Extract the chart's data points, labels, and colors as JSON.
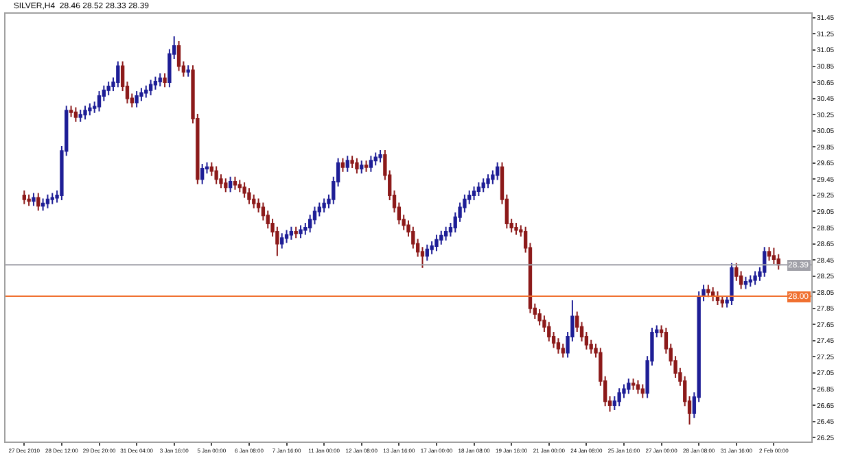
{
  "chart_data": {
    "type": "candlestick",
    "title": "SILVER,H4  28.46 28.52 28.33 28.39",
    "categories": [
      "27 Dec 2010",
      null,
      null,
      null,
      null,
      null,
      null,
      null,
      "28 Dec 12:00",
      null,
      null,
      null,
      null,
      null,
      null,
      null,
      "29 Dec 20:00",
      null,
      null,
      null,
      null,
      null,
      null,
      null,
      "31 Dec 04:00",
      null,
      null,
      null,
      null,
      null,
      null,
      null,
      "3 Jan 16:00",
      null,
      null,
      null,
      null,
      null,
      null,
      null,
      "5 Jan 00:00",
      null,
      null,
      null,
      null,
      null,
      null,
      null,
      "6 Jan 08:00",
      null,
      null,
      null,
      null,
      null,
      null,
      null,
      "7 Jan 16:00",
      null,
      null,
      null,
      null,
      null,
      null,
      null,
      "11 Jan 00:00",
      null,
      null,
      null,
      null,
      null,
      null,
      null,
      "12 Jan 08:00",
      null,
      null,
      null,
      null,
      null,
      null,
      null,
      "13 Jan 16:00",
      null,
      null,
      null,
      null,
      null,
      null,
      null,
      "17 Jan 00:00",
      null,
      null,
      null,
      null,
      null,
      null,
      null,
      "18 Jan 08:00",
      null,
      null,
      null,
      null,
      null,
      null,
      null,
      "19 Jan 16:00",
      null,
      null,
      null,
      null,
      null,
      null,
      null,
      "21 Jan 00:00",
      null,
      null,
      null,
      null,
      null,
      null,
      null,
      "24 Jan 08:00",
      null,
      null,
      null,
      null,
      null,
      null,
      null,
      "25 Jan 16:00",
      null,
      null,
      null,
      null,
      null,
      null,
      null,
      "27 Jan 00:00",
      null,
      null,
      null,
      null,
      null,
      null,
      null,
      "28 Jan 08:00",
      null,
      null,
      null,
      null,
      null,
      null,
      null,
      "31 Jan 16:00",
      null,
      null,
      null,
      null,
      null,
      null,
      null,
      "2 Feb 00:00",
      null
    ],
    "ohlc": [
      [
        29.25,
        29.31,
        29.14,
        29.2
      ],
      [
        29.2,
        29.26,
        29.12,
        29.18
      ],
      [
        29.18,
        29.28,
        29.12,
        29.22
      ],
      [
        29.22,
        29.28,
        29.06,
        29.12
      ],
      [
        29.12,
        29.21,
        29.06,
        29.15
      ],
      [
        29.15,
        29.26,
        29.09,
        29.2
      ],
      [
        29.2,
        29.28,
        29.14,
        29.22
      ],
      [
        29.22,
        29.31,
        29.16,
        29.25
      ],
      [
        29.25,
        29.86,
        29.19,
        29.8
      ],
      [
        29.8,
        30.36,
        29.74,
        30.3
      ],
      [
        30.3,
        30.36,
        30.22,
        30.28
      ],
      [
        30.28,
        30.34,
        30.16,
        30.22
      ],
      [
        30.22,
        30.31,
        30.16,
        30.25
      ],
      [
        30.25,
        30.36,
        30.19,
        30.3
      ],
      [
        30.3,
        30.39,
        30.24,
        30.33
      ],
      [
        30.33,
        30.41,
        30.27,
        30.35
      ],
      [
        30.35,
        30.54,
        30.29,
        30.48
      ],
      [
        30.48,
        30.61,
        30.42,
        30.55
      ],
      [
        30.55,
        30.66,
        30.49,
        30.6
      ],
      [
        30.6,
        30.71,
        30.54,
        30.65
      ],
      [
        30.65,
        30.91,
        30.59,
        30.85
      ],
      [
        30.85,
        30.91,
        30.54,
        30.6
      ],
      [
        30.6,
        30.66,
        30.39,
        30.45
      ],
      [
        30.45,
        30.51,
        30.34,
        30.4
      ],
      [
        30.4,
        30.54,
        30.34,
        30.48
      ],
      [
        30.48,
        30.58,
        30.42,
        30.52
      ],
      [
        30.52,
        30.61,
        30.46,
        30.55
      ],
      [
        30.55,
        30.68,
        30.49,
        30.62
      ],
      [
        30.62,
        30.72,
        30.56,
        30.66
      ],
      [
        30.66,
        30.76,
        30.6,
        30.7
      ],
      [
        30.7,
        30.76,
        30.59,
        30.65
      ],
      [
        30.65,
        31.06,
        30.59,
        31.0
      ],
      [
        31.0,
        31.22,
        30.94,
        31.1
      ],
      [
        31.1,
        31.16,
        30.79,
        30.85
      ],
      [
        30.85,
        30.91,
        30.72,
        30.78
      ],
      [
        30.78,
        30.86,
        30.72,
        30.8
      ],
      [
        30.8,
        30.86,
        30.14,
        30.2
      ],
      [
        30.2,
        30.26,
        29.39,
        29.45
      ],
      [
        29.45,
        29.64,
        29.39,
        29.58
      ],
      [
        29.58,
        29.66,
        29.52,
        29.6
      ],
      [
        29.6,
        29.66,
        29.49,
        29.55
      ],
      [
        29.55,
        29.61,
        29.39,
        29.45
      ],
      [
        29.45,
        29.51,
        29.34,
        29.4
      ],
      [
        29.4,
        29.46,
        29.29,
        29.35
      ],
      [
        29.35,
        29.48,
        29.29,
        29.42
      ],
      [
        29.42,
        29.48,
        29.32,
        29.38
      ],
      [
        29.38,
        29.44,
        29.29,
        29.35
      ],
      [
        29.35,
        29.41,
        29.22,
        29.28
      ],
      [
        29.28,
        29.34,
        29.14,
        29.2
      ],
      [
        29.2,
        29.26,
        29.09,
        29.15
      ],
      [
        29.15,
        29.21,
        29.04,
        29.1
      ],
      [
        29.1,
        29.16,
        28.94,
        29.0
      ],
      [
        29.0,
        29.06,
        28.84,
        28.9
      ],
      [
        28.9,
        28.96,
        28.74,
        28.8
      ],
      [
        28.8,
        28.86,
        28.5,
        28.65
      ],
      [
        28.65,
        28.78,
        28.59,
        28.72
      ],
      [
        28.72,
        28.82,
        28.66,
        28.76
      ],
      [
        28.76,
        28.86,
        28.7,
        28.8
      ],
      [
        28.8,
        28.86,
        28.72,
        28.78
      ],
      [
        28.78,
        28.88,
        28.72,
        28.82
      ],
      [
        28.82,
        28.91,
        28.76,
        28.85
      ],
      [
        28.85,
        29.01,
        28.79,
        28.95
      ],
      [
        28.95,
        29.11,
        28.89,
        29.05
      ],
      [
        29.05,
        29.16,
        28.99,
        29.1
      ],
      [
        29.1,
        29.21,
        29.04,
        29.15
      ],
      [
        29.15,
        29.26,
        29.09,
        29.2
      ],
      [
        29.2,
        29.48,
        29.14,
        29.42
      ],
      [
        29.42,
        29.71,
        29.36,
        29.65
      ],
      [
        29.65,
        29.71,
        29.54,
        29.6
      ],
      [
        29.6,
        29.74,
        29.54,
        29.68
      ],
      [
        29.68,
        29.74,
        29.59,
        29.65
      ],
      [
        29.65,
        29.71,
        29.52,
        29.58
      ],
      [
        29.58,
        29.68,
        29.52,
        29.62
      ],
      [
        29.62,
        29.68,
        29.54,
        29.6
      ],
      [
        29.6,
        29.74,
        29.54,
        29.68
      ],
      [
        29.68,
        29.78,
        29.62,
        29.72
      ],
      [
        29.72,
        29.81,
        29.66,
        29.75
      ],
      [
        29.75,
        29.81,
        29.44,
        29.5
      ],
      [
        29.5,
        29.56,
        29.19,
        29.25
      ],
      [
        29.25,
        29.31,
        29.04,
        29.1
      ],
      [
        29.1,
        29.16,
        28.89,
        28.95
      ],
      [
        28.95,
        29.01,
        28.82,
        28.88
      ],
      [
        28.88,
        28.94,
        28.74,
        28.8
      ],
      [
        28.8,
        28.86,
        28.59,
        28.65
      ],
      [
        28.65,
        28.71,
        28.49,
        28.55
      ],
      [
        28.55,
        28.61,
        28.35,
        28.5
      ],
      [
        28.5,
        28.64,
        28.44,
        28.58
      ],
      [
        28.58,
        28.68,
        28.52,
        28.62
      ],
      [
        28.62,
        28.76,
        28.56,
        28.7
      ],
      [
        28.7,
        28.81,
        28.64,
        28.75
      ],
      [
        28.75,
        28.86,
        28.69,
        28.8
      ],
      [
        28.8,
        28.91,
        28.74,
        28.85
      ],
      [
        28.85,
        29.04,
        28.79,
        28.98
      ],
      [
        28.98,
        29.16,
        28.92,
        29.1
      ],
      [
        29.1,
        29.26,
        29.04,
        29.2
      ],
      [
        29.2,
        29.31,
        29.14,
        29.25
      ],
      [
        29.25,
        29.36,
        29.19,
        29.3
      ],
      [
        29.3,
        29.41,
        29.24,
        29.35
      ],
      [
        29.35,
        29.46,
        29.29,
        29.4
      ],
      [
        29.4,
        29.51,
        29.34,
        29.45
      ],
      [
        29.45,
        29.56,
        29.39,
        29.5
      ],
      [
        29.5,
        29.66,
        29.44,
        29.6
      ],
      [
        29.6,
        29.66,
        29.14,
        29.2
      ],
      [
        29.2,
        29.26,
        28.84,
        28.9
      ],
      [
        28.9,
        28.96,
        28.79,
        28.85
      ],
      [
        28.85,
        28.91,
        28.76,
        28.82
      ],
      [
        28.82,
        28.88,
        28.74,
        28.8
      ],
      [
        28.8,
        28.86,
        28.54,
        28.6
      ],
      [
        28.6,
        28.66,
        27.79,
        27.85
      ],
      [
        27.85,
        27.91,
        27.72,
        27.78
      ],
      [
        27.78,
        27.84,
        27.64,
        27.7
      ],
      [
        27.7,
        27.76,
        27.56,
        27.62
      ],
      [
        27.62,
        27.68,
        27.44,
        27.5
      ],
      [
        27.5,
        27.56,
        27.36,
        27.42
      ],
      [
        27.42,
        27.48,
        27.29,
        27.35
      ],
      [
        27.35,
        27.41,
        27.24,
        27.3
      ],
      [
        27.3,
        27.56,
        27.24,
        27.5
      ],
      [
        27.5,
        27.95,
        27.44,
        27.75
      ],
      [
        27.75,
        27.81,
        27.56,
        27.62
      ],
      [
        27.62,
        27.68,
        27.44,
        27.5
      ],
      [
        27.5,
        27.56,
        27.34,
        27.4
      ],
      [
        27.4,
        27.46,
        27.29,
        27.35
      ],
      [
        27.35,
        27.41,
        27.24,
        27.3
      ],
      [
        27.3,
        27.36,
        26.89,
        26.95
      ],
      [
        26.95,
        27.01,
        26.64,
        26.7
      ],
      [
        26.7,
        26.76,
        26.57,
        26.65
      ],
      [
        26.65,
        26.76,
        26.59,
        26.7
      ],
      [
        26.7,
        26.86,
        26.64,
        26.8
      ],
      [
        26.8,
        26.91,
        26.74,
        26.85
      ],
      [
        26.85,
        26.98,
        26.79,
        26.92
      ],
      [
        26.92,
        26.98,
        26.84,
        26.9
      ],
      [
        26.9,
        26.96,
        26.79,
        26.85
      ],
      [
        26.85,
        26.91,
        26.74,
        26.8
      ],
      [
        26.8,
        27.26,
        26.74,
        27.2
      ],
      [
        27.2,
        27.61,
        27.14,
        27.55
      ],
      [
        27.55,
        27.64,
        27.49,
        27.58
      ],
      [
        27.58,
        27.64,
        27.49,
        27.55
      ],
      [
        27.55,
        27.61,
        27.29,
        27.35
      ],
      [
        27.35,
        27.41,
        27.14,
        27.2
      ],
      [
        27.2,
        27.26,
        26.99,
        27.05
      ],
      [
        27.05,
        27.11,
        26.89,
        26.95
      ],
      [
        26.95,
        27.01,
        26.64,
        26.7
      ],
      [
        26.7,
        26.76,
        26.41,
        26.55
      ],
      [
        26.55,
        26.81,
        26.49,
        26.75
      ],
      [
        26.75,
        28.06,
        26.69,
        28.0
      ],
      [
        28.0,
        28.14,
        27.94,
        28.08
      ],
      [
        28.08,
        28.14,
        27.99,
        28.05
      ],
      [
        28.05,
        28.11,
        27.94,
        28.0
      ],
      [
        28.0,
        28.06,
        27.89,
        27.95
      ],
      [
        27.95,
        28.01,
        27.86,
        27.92
      ],
      [
        27.92,
        28.01,
        27.86,
        27.95
      ],
      [
        27.95,
        28.41,
        27.89,
        28.35
      ],
      [
        28.35,
        28.41,
        28.19,
        28.25
      ],
      [
        28.25,
        28.31,
        28.09,
        28.15
      ],
      [
        28.15,
        28.24,
        28.09,
        28.18
      ],
      [
        28.18,
        28.26,
        28.12,
        28.2
      ],
      [
        28.2,
        28.31,
        28.14,
        28.25
      ],
      [
        28.25,
        28.36,
        28.19,
        28.3
      ],
      [
        28.3,
        28.61,
        28.24,
        28.55
      ],
      [
        28.55,
        28.61,
        28.44,
        28.5
      ],
      [
        28.5,
        28.6,
        28.4,
        28.46
      ],
      [
        28.46,
        28.52,
        28.33,
        28.39
      ]
    ],
    "colors": [
      "#8c1a1a",
      "#8c1a1a",
      "#1e1e96",
      "#8c1a1a",
      "#1e1e96",
      "#1e1e96",
      "#1e1e96",
      "#1e1e96",
      "#1e1e96",
      "#1e1e96",
      "#8c1a1a",
      "#8c1a1a",
      "#1e1e96",
      "#1e1e96",
      "#1e1e96",
      "#1e1e96",
      "#1e1e96",
      "#1e1e96",
      "#1e1e96",
      "#1e1e96",
      "#1e1e96",
      "#8c1a1a",
      "#8c1a1a",
      "#8c1a1a",
      "#1e1e96",
      "#1e1e96",
      "#1e1e96",
      "#1e1e96",
      "#1e1e96",
      "#1e1e96",
      "#8c1a1a",
      "#1e1e96",
      "#1e1e96",
      "#8c1a1a",
      "#8c1a1a",
      "#1e1e96",
      "#8c1a1a",
      "#8c1a1a",
      "#1e1e96",
      "#1e1e96",
      "#8c1a1a",
      "#8c1a1a",
      "#8c1a1a",
      "#8c1a1a",
      "#1e1e96",
      "#8c1a1a",
      "#8c1a1a",
      "#8c1a1a",
      "#8c1a1a",
      "#8c1a1a",
      "#8c1a1a",
      "#8c1a1a",
      "#8c1a1a",
      "#8c1a1a",
      "#8c1a1a",
      "#1e1e96",
      "#1e1e96",
      "#1e1e96",
      "#8c1a1a",
      "#1e1e96",
      "#1e1e96",
      "#1e1e96",
      "#1e1e96",
      "#1e1e96",
      "#1e1e96",
      "#1e1e96",
      "#1e1e96",
      "#1e1e96",
      "#8c1a1a",
      "#1e1e96",
      "#8c1a1a",
      "#8c1a1a",
      "#1e1e96",
      "#8c1a1a",
      "#1e1e96",
      "#1e1e96",
      "#1e1e96",
      "#8c1a1a",
      "#8c1a1a",
      "#8c1a1a",
      "#8c1a1a",
      "#8c1a1a",
      "#8c1a1a",
      "#8c1a1a",
      "#8c1a1a",
      "#8c1a1a",
      "#1e1e96",
      "#1e1e96",
      "#1e1e96",
      "#1e1e96",
      "#1e1e96",
      "#1e1e96",
      "#1e1e96",
      "#1e1e96",
      "#1e1e96",
      "#1e1e96",
      "#1e1e96",
      "#1e1e96",
      "#1e1e96",
      "#1e1e96",
      "#1e1e96",
      "#1e1e96",
      "#8c1a1a",
      "#8c1a1a",
      "#8c1a1a",
      "#8c1a1a",
      "#8c1a1a",
      "#8c1a1a",
      "#8c1a1a",
      "#8c1a1a",
      "#8c1a1a",
      "#8c1a1a",
      "#8c1a1a",
      "#8c1a1a",
      "#8c1a1a",
      "#8c1a1a",
      "#1e1e96",
      "#1e1e96",
      "#8c1a1a",
      "#8c1a1a",
      "#8c1a1a",
      "#8c1a1a",
      "#8c1a1a",
      "#8c1a1a",
      "#8c1a1a",
      "#8c1a1a",
      "#1e1e96",
      "#1e1e96",
      "#1e1e96",
      "#1e1e96",
      "#8c1a1a",
      "#8c1a1a",
      "#8c1a1a",
      "#1e1e96",
      "#1e1e96",
      "#1e1e96",
      "#8c1a1a",
      "#8c1a1a",
      "#8c1a1a",
      "#8c1a1a",
      "#8c1a1a",
      "#8c1a1a",
      "#8c1a1a",
      "#1e1e96",
      "#1e1e96",
      "#1e1e96",
      "#8c1a1a",
      "#8c1a1a",
      "#8c1a1a",
      "#8c1a1a",
      "#1e1e96",
      "#1e1e96",
      "#8c1a1a",
      "#8c1a1a",
      "#1e1e96",
      "#1e1e96",
      "#1e1e96",
      "#1e1e96",
      "#1e1e96",
      "#8c1a1a",
      "#8c1a1a",
      "#8c1a1a"
    ],
    "ylim": [
      26.2,
      31.5
    ],
    "yticks": [
      26.25,
      26.45,
      26.65,
      26.85,
      27.05,
      27.25,
      27.45,
      27.65,
      27.85,
      28.05,
      28.25,
      28.45,
      28.65,
      28.85,
      29.05,
      29.25,
      29.45,
      29.65,
      29.85,
      30.05,
      30.25,
      30.45,
      30.65,
      30.85,
      31.05,
      31.25,
      31.45
    ],
    "ref_lines": [
      {
        "axis": "y",
        "value": 28.39,
        "label": "28.39",
        "color": "#a0a0a8"
      },
      {
        "axis": "y",
        "value": 28.0,
        "label": "28.00",
        "color": "#f07030"
      }
    ]
  }
}
